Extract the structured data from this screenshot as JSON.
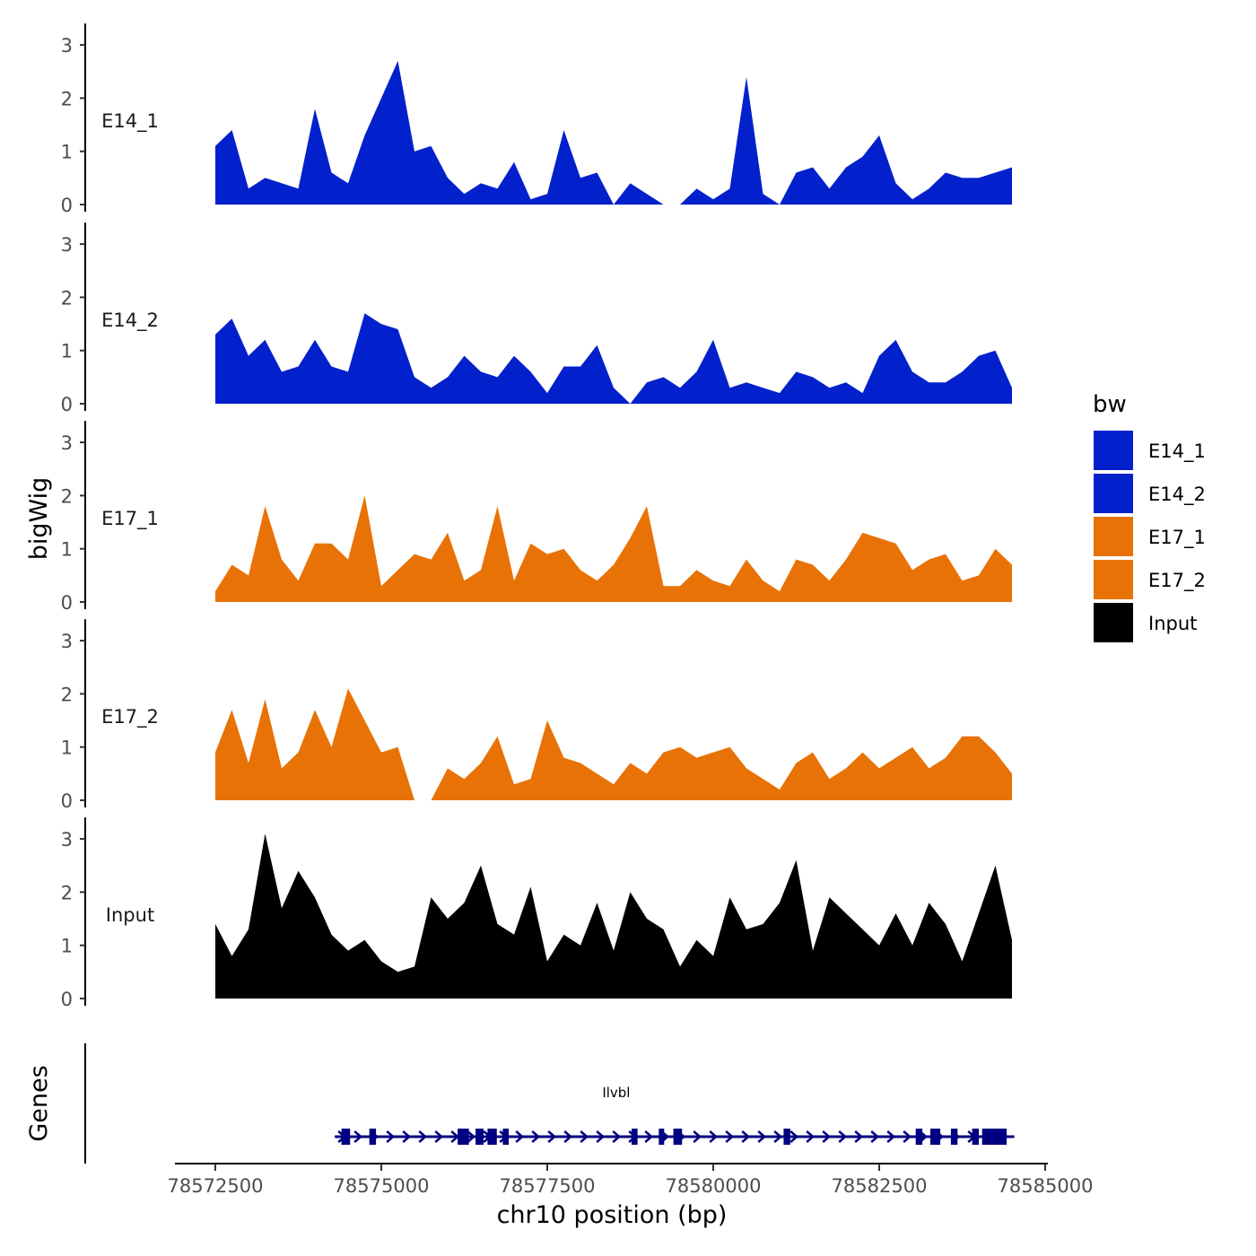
{
  "chart_data": {
    "type": "area",
    "description_free": true,
    "ylabel": "bigWig",
    "xlabel": "chr10 position (bp)",
    "xlim": [
      78572500,
      78585000
    ],
    "ylim": [
      0,
      3.3
    ],
    "y_ticks": [
      "0",
      "1",
      "2",
      "3"
    ],
    "x_ticks": [
      {
        "value": 78572500,
        "label": "78572500"
      },
      {
        "value": 78575000,
        "label": "78575000"
      },
      {
        "value": 78577500,
        "label": "78577500"
      },
      {
        "value": 78580000,
        "label": "78580000"
      },
      {
        "value": 78582500,
        "label": "78582500"
      },
      {
        "value": 78585000,
        "label": "78585000"
      }
    ],
    "genes_panel_label": "Genes",
    "legend": {
      "title": "bw",
      "entries": [
        {
          "name": "E14_1",
          "color": "#0220CC"
        },
        {
          "name": "E14_2",
          "color": "#0220CC"
        },
        {
          "name": "E17_1",
          "color": "#E87205"
        },
        {
          "name": "E17_2",
          "color": "#E87205"
        },
        {
          "name": "Input",
          "color": "#000000"
        }
      ]
    },
    "x": [
      78572500,
      78572750,
      78573000,
      78573250,
      78573500,
      78573750,
      78574000,
      78574250,
      78574500,
      78574750,
      78575000,
      78575250,
      78575500,
      78575750,
      78576000,
      78576250,
      78576500,
      78576750,
      78577000,
      78577250,
      78577500,
      78577750,
      78578000,
      78578250,
      78578500,
      78578750,
      78579000,
      78579250,
      78579500,
      78579750,
      78580000,
      78580250,
      78580500,
      78580750,
      78581000,
      78581250,
      78581500,
      78581750,
      78582000,
      78582250,
      78582500,
      78582750,
      78583000,
      78583250,
      78583500,
      78583750,
      78584000,
      78584250,
      78584500
    ],
    "series": [
      {
        "name": "E14_1",
        "label": "E14_1",
        "color": "#0220CC",
        "values": [
          1.1,
          1.4,
          0.3,
          0.5,
          0.4,
          0.3,
          1.8,
          0.6,
          0.4,
          1.3,
          2.0,
          2.7,
          1.0,
          1.1,
          0.5,
          0.2,
          0.4,
          0.3,
          0.8,
          0.1,
          0.2,
          1.4,
          0.5,
          0.6,
          0.0,
          0.4,
          0.2,
          0.0,
          0.0,
          0.3,
          0.1,
          0.3,
          2.4,
          0.2,
          0.0,
          0.6,
          0.7,
          0.3,
          0.7,
          0.9,
          1.3,
          0.4,
          0.1,
          0.3,
          0.6,
          0.5,
          0.5,
          0.6,
          0.7
        ]
      },
      {
        "name": "E14_2",
        "label": "E14_2",
        "color": "#0220CC",
        "values": [
          1.3,
          1.6,
          0.9,
          1.2,
          0.6,
          0.7,
          1.2,
          0.7,
          0.6,
          1.7,
          1.5,
          1.4,
          0.5,
          0.3,
          0.5,
          0.9,
          0.6,
          0.5,
          0.9,
          0.6,
          0.2,
          0.7,
          0.7,
          1.1,
          0.3,
          0.0,
          0.4,
          0.5,
          0.3,
          0.6,
          1.2,
          0.3,
          0.4,
          0.3,
          0.2,
          0.6,
          0.5,
          0.3,
          0.4,
          0.2,
          0.9,
          1.2,
          0.6,
          0.4,
          0.4,
          0.6,
          0.9,
          1.0,
          0.3
        ]
      },
      {
        "name": "E17_1",
        "label": "E17_1",
        "color": "#E87205",
        "values": [
          0.2,
          0.7,
          0.5,
          1.8,
          0.8,
          0.4,
          1.1,
          1.1,
          0.8,
          2.0,
          0.3,
          0.6,
          0.9,
          0.8,
          1.3,
          0.4,
          0.6,
          1.8,
          0.4,
          1.1,
          0.9,
          1.0,
          0.6,
          0.4,
          0.7,
          1.2,
          1.8,
          0.3,
          0.3,
          0.6,
          0.4,
          0.3,
          0.8,
          0.4,
          0.2,
          0.8,
          0.7,
          0.4,
          0.8,
          1.3,
          1.2,
          1.1,
          0.6,
          0.8,
          0.9,
          0.4,
          0.5,
          1.0,
          0.7
        ]
      },
      {
        "name": "E17_2",
        "label": "E17_2",
        "color": "#E87205",
        "values": [
          0.9,
          1.7,
          0.7,
          1.9,
          0.6,
          0.9,
          1.7,
          1.0,
          2.1,
          1.5,
          0.9,
          1.0,
          0.0,
          0.0,
          0.6,
          0.4,
          0.7,
          1.2,
          0.3,
          0.4,
          1.5,
          0.8,
          0.7,
          0.5,
          0.3,
          0.7,
          0.5,
          0.9,
          1.0,
          0.8,
          0.9,
          1.0,
          0.6,
          0.4,
          0.2,
          0.7,
          0.9,
          0.4,
          0.6,
          0.9,
          0.6,
          0.8,
          1.0,
          0.6,
          0.8,
          1.2,
          1.2,
          0.9,
          0.5
        ]
      },
      {
        "name": "Input",
        "label": "Input",
        "color": "#000000",
        "values": [
          1.4,
          0.8,
          1.3,
          3.1,
          1.7,
          2.4,
          1.9,
          1.2,
          0.9,
          1.1,
          0.7,
          0.5,
          0.6,
          1.9,
          1.5,
          1.8,
          2.5,
          1.4,
          1.2,
          2.1,
          0.7,
          1.2,
          1.0,
          1.8,
          0.9,
          2.0,
          1.5,
          1.3,
          0.6,
          1.1,
          0.8,
          1.9,
          1.3,
          1.4,
          1.8,
          2.6,
          0.9,
          1.9,
          1.6,
          1.3,
          1.0,
          1.6,
          1.0,
          1.8,
          1.4,
          0.7,
          1.6,
          2.5,
          1.1
        ]
      }
    ],
    "gene": {
      "name": "Ilvbl",
      "strand": "+",
      "start": 78574300,
      "end": 78584400,
      "exons": [
        [
          78574400,
          78574530
        ],
        [
          78574820,
          78574920
        ],
        [
          78576150,
          78576320
        ],
        [
          78576420,
          78576540
        ],
        [
          78576600,
          78576740
        ],
        [
          78576830,
          78576920
        ],
        [
          78578770,
          78578860
        ],
        [
          78579180,
          78579260
        ],
        [
          78579400,
          78579530
        ],
        [
          78581060,
          78581160
        ],
        [
          78583050,
          78583150
        ],
        [
          78583270,
          78583420
        ],
        [
          78583580,
          78583680
        ],
        [
          78583900,
          78584000
        ],
        [
          78584050,
          78584420
        ]
      ]
    }
  }
}
